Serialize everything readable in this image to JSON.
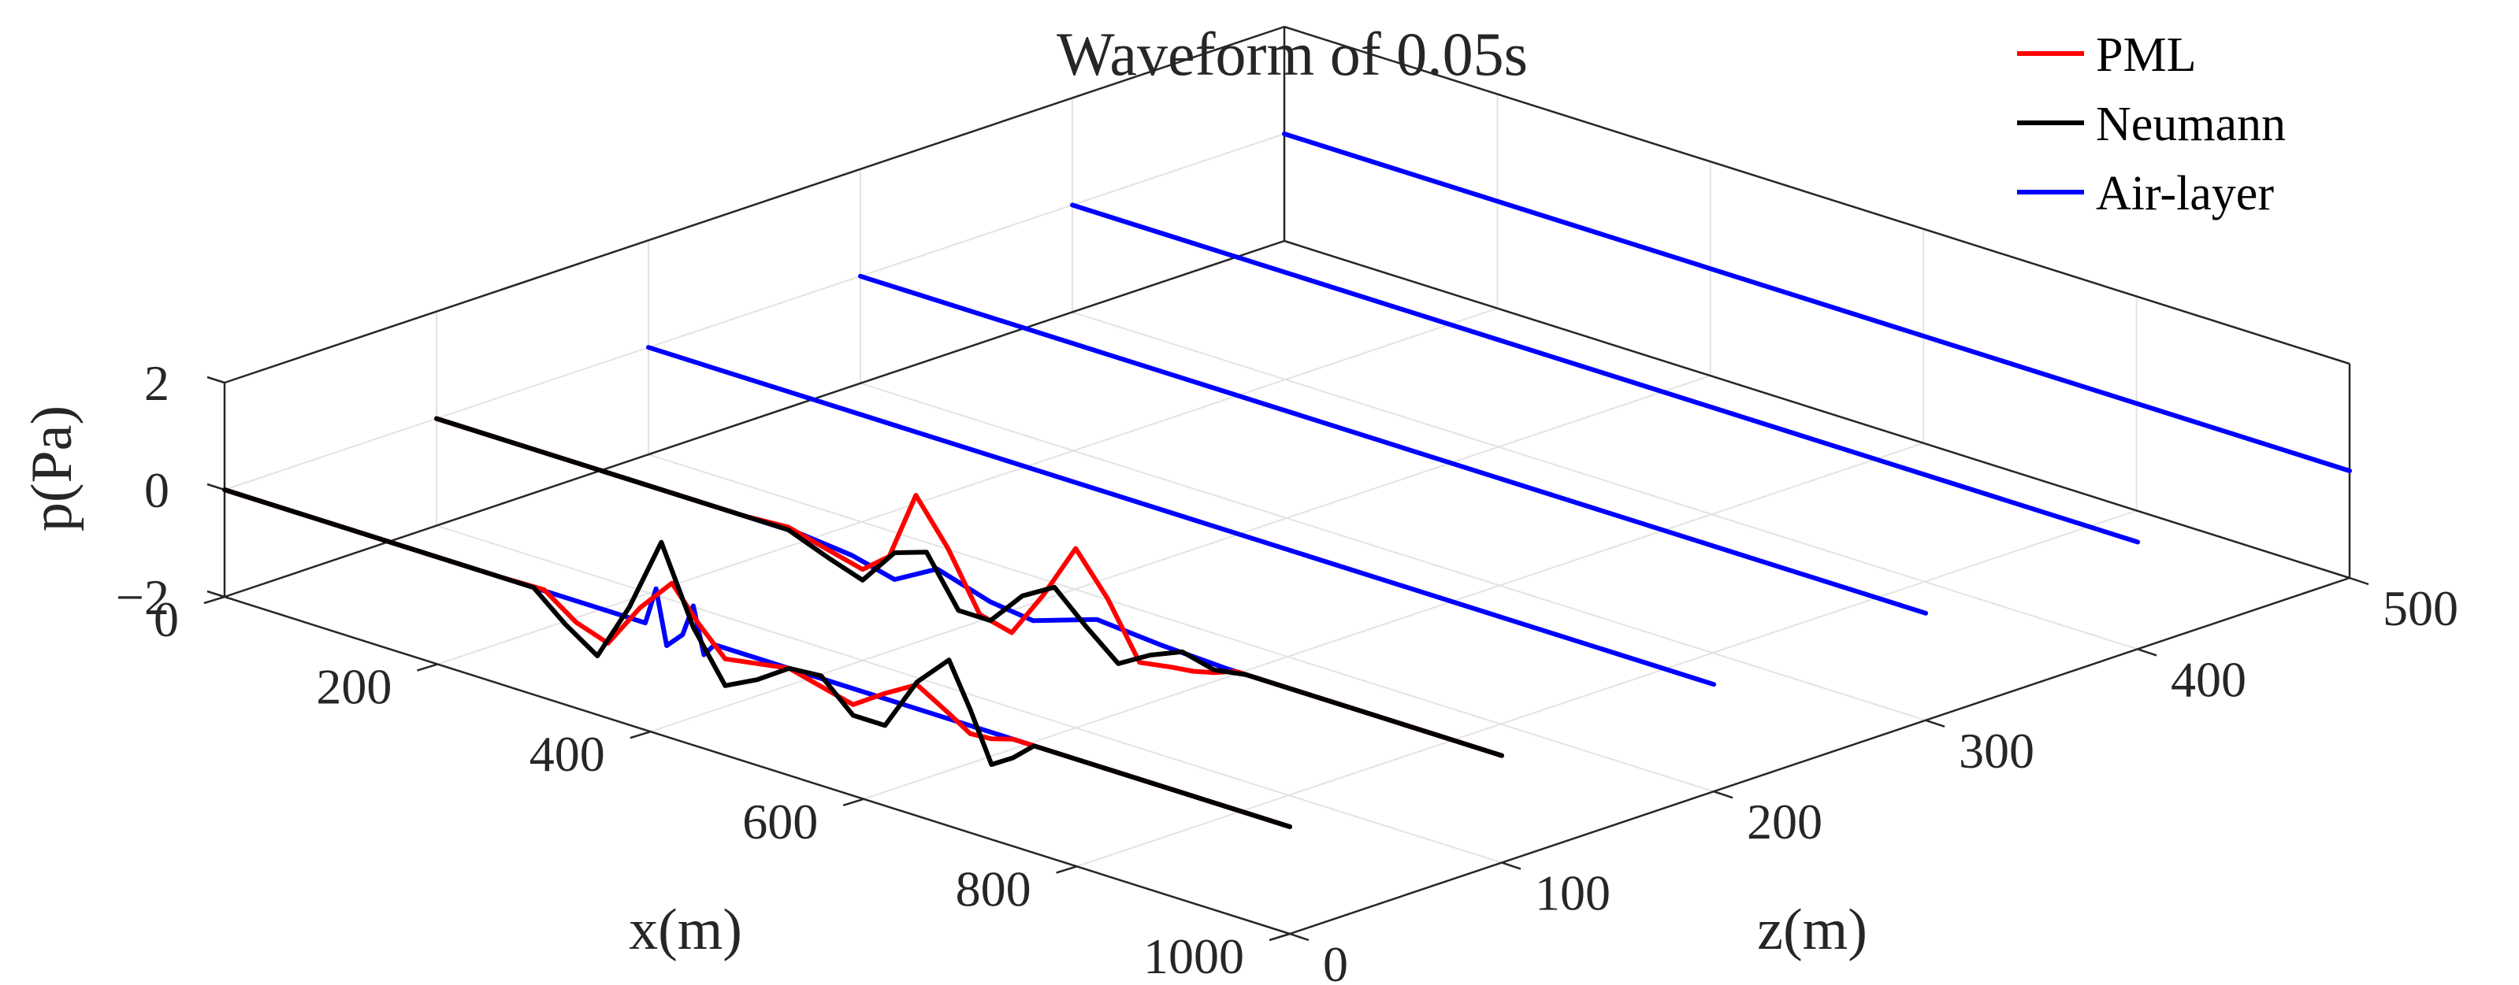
{
  "chart_data": {
    "type": "line",
    "view": "3d",
    "title": "Waveform of 0.05s",
    "xlabel": "x(m)",
    "ylabel": "z(m)",
    "zlabel": "p(Pa)",
    "xlim": [
      0,
      1000
    ],
    "ylim": [
      0,
      500
    ],
    "zlim": [
      -2,
      2
    ],
    "xticks": [
      0,
      200,
      400,
      600,
      800,
      1000
    ],
    "xtick_labels": [
      "0",
      "200",
      "400",
      "600",
      "800",
      "1000"
    ],
    "yticks": [
      0,
      100,
      200,
      300,
      400,
      500
    ],
    "ytick_labels": [
      "0",
      "100",
      "200",
      "300",
      "400",
      "500"
    ],
    "zticks": [
      -2,
      0,
      2
    ],
    "ztick_labels": [
      "−2",
      "0",
      "2"
    ],
    "grid": true,
    "legend_position": "top-right",
    "series": [
      {
        "name": "PML",
        "color": "#ff0000",
        "traces": [
          {
            "z": 0,
            "x": [
              0,
              260,
              300,
              330,
              360,
              390,
              420,
              445,
              470,
              500,
              530,
              560,
              590,
              620,
              650,
              680,
              700,
              720,
              740,
              760,
              1000
            ],
            "p": [
              0,
              0,
              0.02,
              -0.4,
              -0.6,
              0.25,
              0.9,
              0.3,
              -0.2,
              -0.1,
              0,
              -0.15,
              -0.3,
              0.1,
              0.45,
              0.1,
              -0.15,
              -0.12,
              0,
              0,
              0
            ]
          },
          {
            "z": 100,
            "x": [
              0,
              290,
              330,
              370,
              400,
              425,
              450,
              480,
              510,
              540,
              570,
              600,
              630,
              660,
              690,
              710,
              730,
              750,
              1000
            ],
            "p": [
              0,
              0,
              0.05,
              -0.15,
              -0.3,
              0.1,
              1.4,
              0.6,
              -0.45,
              -0.6,
              0.3,
              1.35,
              0.6,
              -0.4,
              -0.3,
              -0.25,
              -0.15,
              0,
              0
            ]
          }
        ]
      },
      {
        "name": "Neumann",
        "color": "#000000",
        "traces": [
          {
            "z": 0,
            "x": [
              0,
              260,
              290,
              320,
              350,
              380,
              410,
              440,
              470,
              500,
              530,
              560,
              590,
              620,
              650,
              680,
              700,
              720,
              740,
              760,
              1000
            ],
            "p": [
              0,
              0,
              0,
              -0.5,
              -0.9,
              0.2,
              1.6,
              0.2,
              -0.7,
              -0.4,
              0,
              0.05,
              -0.5,
              -0.5,
              0.5,
              1.1,
              0.3,
              -0.6,
              -0.35,
              0,
              0
            ]
          },
          {
            "z": 100,
            "x": [
              0,
              290,
              330,
              370,
              400,
              430,
              460,
              490,
              520,
              550,
              580,
              610,
              640,
              670,
              700,
              730,
              760,
              1000
            ],
            "p": [
              0,
              0,
              0,
              -0.3,
              -0.5,
              0.2,
              0.4,
              -0.5,
              -0.5,
              0.15,
              0.5,
              -0.05,
              -0.55,
              -0.2,
              0.05,
              -0.1,
              0,
              0
            ]
          }
        ]
      },
      {
        "name": "Air-layer",
        "color": "#0000ff",
        "traces": [
          {
            "z": 0,
            "x": [
              0,
              380,
              395,
              405,
              415,
              430,
              440,
              450,
              460,
              1000
            ],
            "p": [
              0,
              0,
              0,
              0.7,
              -0.3,
              0,
              0.6,
              -0.25,
              0,
              0
            ]
          },
          {
            "z": 100,
            "x": [
              0,
              340,
              390,
              430,
              470,
              520,
              560,
              620,
              680,
              740,
              1000
            ],
            "p": [
              0,
              0,
              -0.1,
              -0.3,
              0.15,
              -0.15,
              -0.25,
              0.15,
              0.05,
              0,
              0
            ]
          },
          {
            "z": 200,
            "x": [
              0,
              1000
            ],
            "p": [
              0,
              0
            ]
          },
          {
            "z": 300,
            "x": [
              0,
              1000
            ],
            "p": [
              0,
              0
            ]
          },
          {
            "z": 400,
            "x": [
              0,
              1000
            ],
            "p": [
              0,
              0
            ]
          },
          {
            "z": 500,
            "x": [
              0,
              1000
            ],
            "p": [
              0,
              0
            ]
          }
        ]
      }
    ]
  }
}
